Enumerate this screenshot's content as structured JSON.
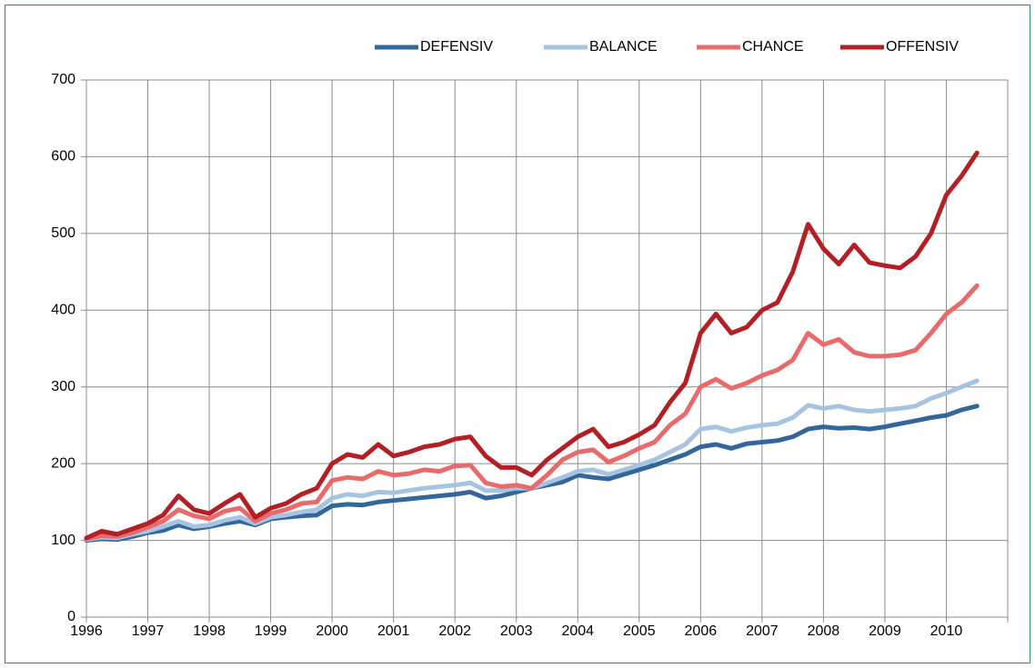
{
  "chart_data": {
    "type": "line",
    "x": [
      1996,
      1996.25,
      1996.5,
      1996.75,
      1997,
      1997.25,
      1997.5,
      1997.75,
      1998,
      1998.25,
      1998.5,
      1998.75,
      1999,
      1999.25,
      1999.5,
      1999.75,
      2000,
      2000.25,
      2000.5,
      2000.75,
      2001,
      2001.25,
      2001.5,
      2001.75,
      2002,
      2002.25,
      2002.5,
      2002.75,
      2003,
      2003.25,
      2003.5,
      2003.75,
      2004,
      2004.25,
      2004.5,
      2004.75,
      2005,
      2005.25,
      2005.5,
      2005.75,
      2006,
      2006.25,
      2006.5,
      2006.75,
      2007,
      2007.25,
      2007.5,
      2007.75,
      2008,
      2008.25,
      2008.5,
      2008.75,
      2009,
      2009.25,
      2009.5,
      2009.75,
      2010,
      2010.25,
      2010.5
    ],
    "series": [
      {
        "name": "DEFENSIV",
        "color": "#336699",
        "values": [
          100,
          102,
          101,
          105,
          110,
          113,
          120,
          115,
          118,
          122,
          125,
          120,
          128,
          130,
          132,
          133,
          145,
          147,
          146,
          150,
          152,
          154,
          156,
          158,
          160,
          163,
          155,
          158,
          163,
          168,
          172,
          176,
          185,
          182,
          180,
          186,
          192,
          198,
          205,
          212,
          222,
          225,
          220,
          226,
          228,
          230,
          235,
          245,
          248,
          246,
          247,
          245,
          248,
          252,
          256,
          260,
          263,
          270,
          275
        ]
      },
      {
        "name": "BALANCE",
        "color": "#a6c4e2",
        "values": [
          101,
          104,
          103,
          108,
          112,
          118,
          125,
          118,
          120,
          126,
          130,
          122,
          130,
          133,
          137,
          140,
          155,
          160,
          158,
          163,
          162,
          165,
          168,
          170,
          172,
          175,
          165,
          165,
          168,
          168,
          175,
          182,
          190,
          192,
          186,
          192,
          198,
          205,
          215,
          225,
          245,
          248,
          242,
          247,
          250,
          252,
          260,
          276,
          272,
          275,
          270,
          268,
          270,
          272,
          275,
          285,
          292,
          300,
          308
        ]
      },
      {
        "name": "CHANCE",
        "color": "#e86a6a",
        "values": [
          102,
          106,
          105,
          110,
          117,
          125,
          140,
          132,
          128,
          138,
          142,
          125,
          135,
          140,
          148,
          150,
          178,
          182,
          180,
          190,
          185,
          187,
          192,
          190,
          197,
          198,
          175,
          170,
          172,
          168,
          185,
          205,
          215,
          218,
          202,
          210,
          220,
          228,
          250,
          265,
          300,
          310,
          298,
          305,
          315,
          322,
          335,
          370,
          355,
          362,
          345,
          340,
          340,
          342,
          348,
          370,
          395,
          410,
          432
        ]
      },
      {
        "name": "OFFENSIV",
        "color": "#b21f24",
        "values": [
          103,
          112,
          108,
          115,
          122,
          133,
          158,
          140,
          135,
          148,
          160,
          130,
          142,
          148,
          160,
          168,
          200,
          212,
          208,
          225,
          210,
          215,
          222,
          225,
          232,
          235,
          210,
          195,
          195,
          185,
          205,
          220,
          235,
          245,
          222,
          228,
          238,
          250,
          280,
          305,
          370,
          395,
          370,
          378,
          400,
          410,
          450,
          512,
          480,
          460,
          485,
          462,
          458,
          455,
          470,
          500,
          550,
          575,
          605
        ]
      }
    ],
    "xlim": [
      1996,
      2011
    ],
    "xticks": [
      1996,
      1997,
      1998,
      1999,
      2000,
      2001,
      2002,
      2003,
      2004,
      2005,
      2006,
      2007,
      2008,
      2009,
      2010
    ],
    "ylim": [
      0,
      700
    ],
    "yticks": [
      0,
      100,
      200,
      300,
      400,
      500,
      600,
      700
    ],
    "grid": true
  }
}
